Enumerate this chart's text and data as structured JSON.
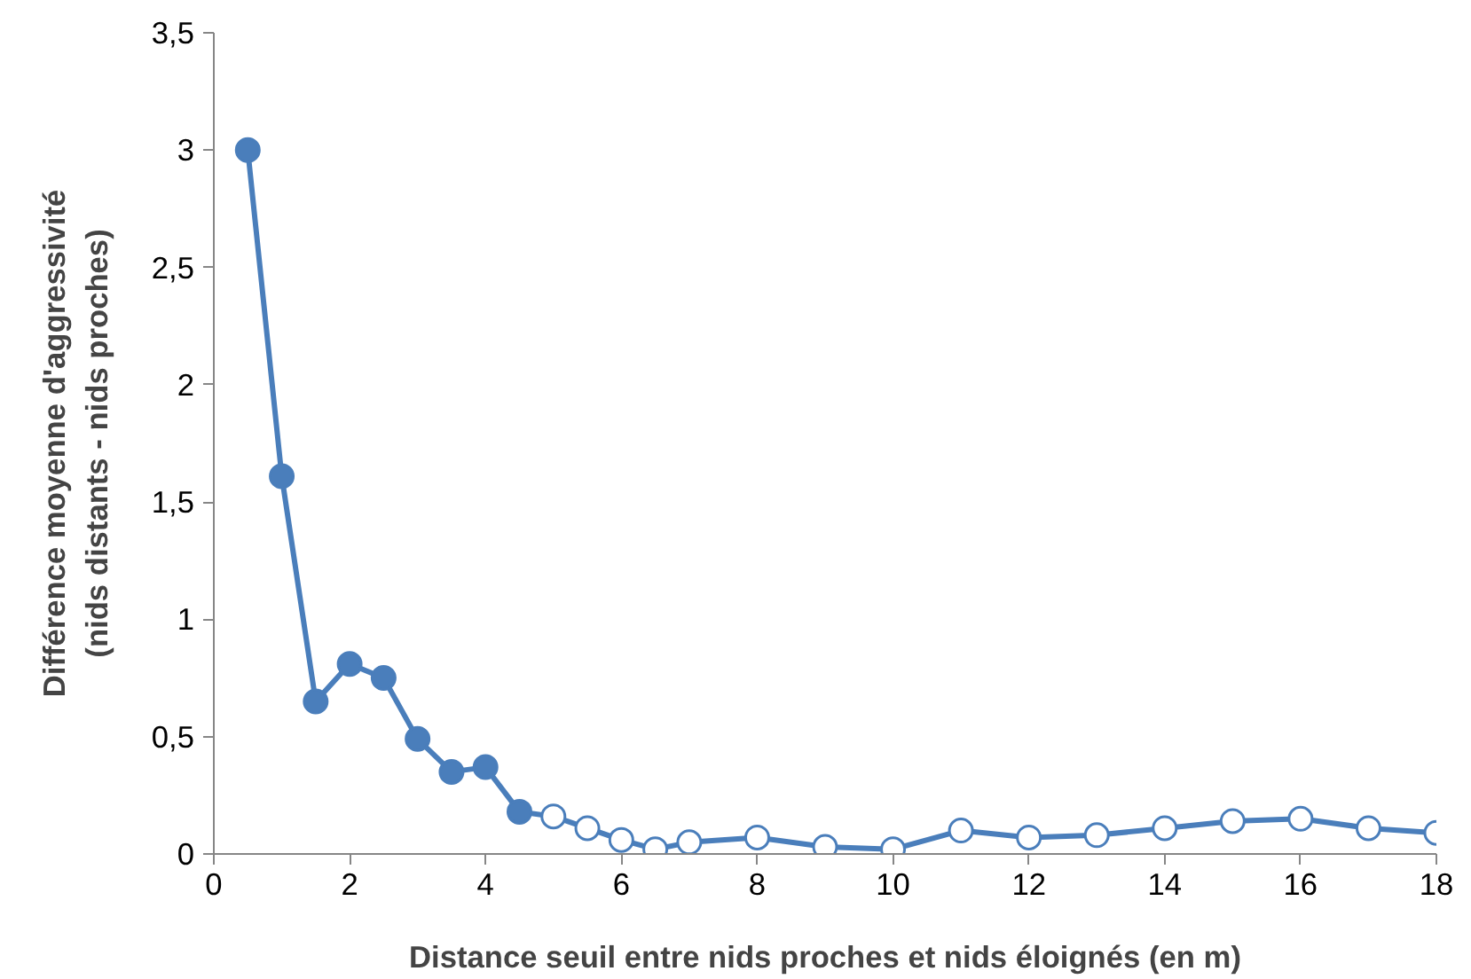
{
  "chart_data": {
    "type": "line",
    "xlabel": "Distance seuil entre nids proches et nids éloignés (en m)",
    "ylabel": "Différence moyenne d'aggressivité\n(nids distants - nids proches)",
    "xlim": [
      0,
      18
    ],
    "xticks": [
      0,
      2,
      4,
      6,
      8,
      10,
      12,
      14,
      16,
      18
    ],
    "ylim": [
      0,
      3.5
    ],
    "yticks": [
      0,
      {
        "value": 0.5,
        "label": "0,5"
      },
      1,
      {
        "value": 1.5,
        "label": "1,5"
      },
      2,
      {
        "value": 2.5,
        "label": "2,5"
      },
      3,
      {
        "value": 3.5,
        "label": "3,5"
      }
    ],
    "grid": false,
    "marker": "circle",
    "line_style": "solid",
    "series": [
      {
        "color": "#4a7ebb",
        "x": [
          0.5,
          1,
          1.5,
          2,
          2.5,
          3,
          3.5,
          4,
          4.5,
          5,
          5.5,
          6,
          6.5,
          7,
          8,
          9,
          10,
          11,
          12,
          13,
          14,
          15,
          16,
          17,
          18
        ],
        "values": [
          3.0,
          1.61,
          0.65,
          0.81,
          0.75,
          0.49,
          0.35,
          0.37,
          0.18,
          0.16,
          0.11,
          0.06,
          0.02,
          0.05,
          0.07,
          0.03,
          0.02,
          0.1,
          0.07,
          0.08,
          0.11,
          0.14,
          0.15,
          0.11,
          0.09
        ],
        "colors": [
          "#4a7ebb",
          "#4a7ebb",
          "#4a7ebb",
          "#4a7ebb",
          "#4a7ebb",
          "#4a7ebb",
          "#4a7ebb",
          "#4a7ebb",
          "#4a7ebb",
          "#ffffff",
          "#ffffff",
          "#ffffff",
          "#ffffff",
          "#ffffff",
          "#ffffff",
          "#ffffff",
          "#ffffff",
          "#ffffff",
          "#ffffff",
          "#ffffff",
          "#ffffff",
          "#ffffff",
          "#ffffff",
          "#ffffff",
          "#ffffff"
        ]
      }
    ]
  }
}
